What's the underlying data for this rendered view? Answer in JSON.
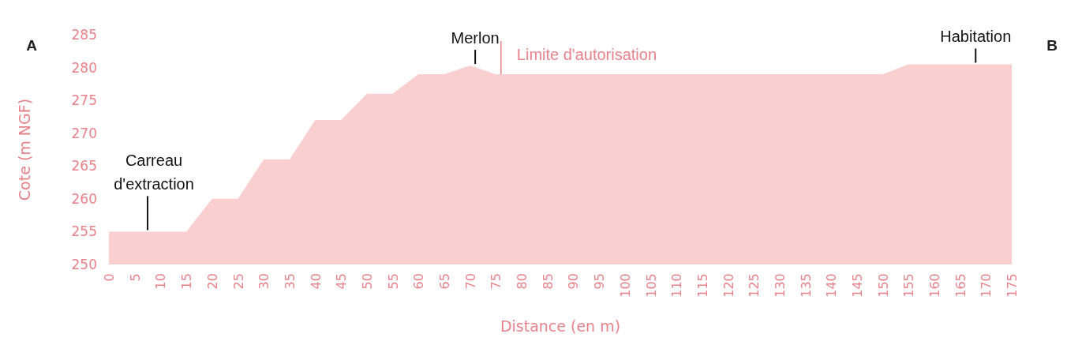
{
  "chart_data": {
    "type": "area",
    "xlabel": "Distance (en m)",
    "ylabel": "Cote (m NGF)",
    "x": [
      0,
      15,
      20,
      25,
      30,
      35,
      40,
      45,
      50,
      55,
      60,
      65,
      70,
      75,
      150,
      155,
      175
    ],
    "series": [
      {
        "color": "#f9cfd0",
        "values": [
          255,
          255,
          260,
          260,
          266,
          266,
          272,
          272,
          276,
          276,
          279,
          279,
          280.3,
          279,
          279,
          280.5,
          280.5
        ]
      }
    ],
    "xlim": [
      0,
      175
    ],
    "xticks": [
      0,
      5,
      10,
      15,
      20,
      25,
      30,
      35,
      40,
      45,
      50,
      55,
      60,
      65,
      70,
      75,
      80,
      85,
      90,
      95,
      100,
      105,
      110,
      115,
      120,
      125,
      130,
      135,
      140,
      145,
      150,
      155,
      160,
      165,
      170,
      175
    ],
    "ylim": [
      250,
      285
    ],
    "yticks": [
      250,
      255,
      260,
      265,
      270,
      275,
      280,
      285
    ],
    "grid": false,
    "ref_lines": [
      {
        "axis": "x",
        "value": 76,
        "label": "Limite d'autorisation",
        "color": "#e8828a"
      }
    ],
    "annotations": [
      {
        "text": "Carreau d'extraction",
        "x": 7.5,
        "y": 255
      },
      {
        "text": "Merlon",
        "x": 71,
        "y": 280.3
      },
      {
        "text": "Habitation",
        "x": 168,
        "y": 280.5
      },
      "A",
      "B"
    ]
  }
}
